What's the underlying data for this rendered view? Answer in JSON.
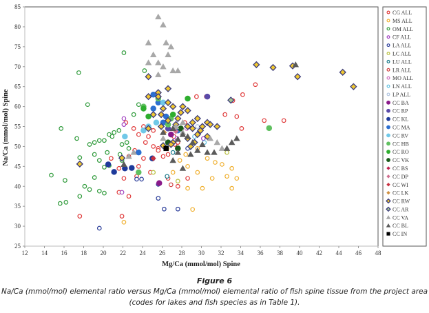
{
  "figure": {
    "title": "Figure 6",
    "caption_line1": "Na/Ca (mmol/mol) elemental ratio versus Mg/Ca (mmol/mol) elemental ratio of fish spine tissue from the project area",
    "caption_line2": "(codes for lakes and fish species as in Table 1)."
  },
  "chart_data": {
    "type": "scatter",
    "title": "",
    "xlabel": "Mg/Ca (mmol/mol) Spine",
    "ylabel": "Na/Ca (mmol/mol) Spine",
    "xlim": [
      12,
      48
    ],
    "ylim": [
      25,
      85
    ],
    "xticks": [
      "12",
      "14",
      "16",
      "18",
      "20",
      "22",
      "24",
      "26",
      "28",
      "30",
      "32",
      "34",
      "36",
      "38",
      "40",
      "42",
      "44",
      "46",
      "48"
    ],
    "yticks": [
      "25",
      "30",
      "35",
      "40",
      "45",
      "50",
      "55",
      "60",
      "65",
      "70",
      "75",
      "80",
      "85"
    ],
    "grid": false,
    "legend_position": "right",
    "series": [
      {
        "name": "CG ALL",
        "marker": "open-circle",
        "color": "#e03c3c",
        "points": [
          [
            22.3,
            56
          ],
          [
            23.1,
            54.5
          ],
          [
            23.6,
            53
          ],
          [
            24.1,
            55
          ],
          [
            24.6,
            52.5
          ],
          [
            25.1,
            50
          ],
          [
            25.6,
            49.5
          ],
          [
            26.1,
            47.5
          ],
          [
            24.3,
            51
          ],
          [
            23.2,
            49
          ],
          [
            22.6,
            47.5
          ],
          [
            21.6,
            44.5
          ],
          [
            20.8,
            47
          ],
          [
            22.1,
            42
          ],
          [
            23.6,
            45
          ],
          [
            24.8,
            43.5
          ],
          [
            25.6,
            49
          ],
          [
            26.6,
            48
          ],
          [
            27.2,
            52.5
          ],
          [
            27.6,
            51
          ],
          [
            28.3,
            56
          ],
          [
            29.5,
            62.5
          ],
          [
            30.5,
            62.5
          ],
          [
            33.2,
            61.5
          ],
          [
            34.2,
            63
          ],
          [
            32.4,
            58
          ],
          [
            33.6,
            57.5
          ],
          [
            34.1,
            54.5
          ],
          [
            36.4,
            56.5
          ],
          [
            38.4,
            56.5
          ],
          [
            35.5,
            65.5
          ],
          [
            26.6,
            42
          ],
          [
            27.6,
            40
          ],
          [
            28.6,
            42
          ],
          [
            24.1,
            47
          ],
          [
            22.6,
            37.5
          ],
          [
            21.6,
            38.5
          ],
          [
            17.6,
            32.5
          ],
          [
            21.9,
            32.5
          ],
          [
            25.1,
            54
          ],
          [
            27.3,
            50.5
          ],
          [
            23.4,
            42.5
          ]
        ]
      },
      {
        "name": "MS ALL",
        "marker": "open-circle",
        "color": "#f0b030",
        "points": [
          [
            28.4,
            48
          ],
          [
            29.6,
            49.5
          ],
          [
            30.6,
            47
          ],
          [
            31.4,
            46
          ],
          [
            32.1,
            45.5
          ],
          [
            33.1,
            44.5
          ],
          [
            33.6,
            42
          ],
          [
            32.6,
            42.5
          ],
          [
            31.1,
            42
          ],
          [
            29.6,
            43.5
          ],
          [
            28.6,
            45
          ],
          [
            27.8,
            46.5
          ],
          [
            27.1,
            43.5
          ],
          [
            28.6,
            39.5
          ],
          [
            30.1,
            39.5
          ],
          [
            33.1,
            39.5
          ],
          [
            29.1,
            34.2
          ],
          [
            22.1,
            31
          ],
          [
            26.5,
            49.5
          ]
        ]
      },
      {
        "name": "OM ALL",
        "marker": "open-circle",
        "color": "#2e9a3a",
        "points": [
          [
            17.5,
            68.5
          ],
          [
            22.1,
            73.5
          ],
          [
            18.4,
            60.5
          ],
          [
            15.7,
            54.5
          ],
          [
            17.3,
            52
          ],
          [
            14.7,
            42.8
          ],
          [
            16.1,
            41.5
          ],
          [
            16.2,
            36
          ],
          [
            15.6,
            35.7
          ],
          [
            17.6,
            37.5
          ],
          [
            18.1,
            40
          ],
          [
            18.6,
            39.2
          ],
          [
            19.6,
            38.8
          ],
          [
            20.1,
            38.3
          ],
          [
            19.1,
            42.2
          ],
          [
            20.1,
            44.8
          ],
          [
            20.6,
            45.2
          ],
          [
            21.1,
            43.5
          ],
          [
            19.6,
            46.5
          ],
          [
            19.1,
            48
          ],
          [
            18.6,
            50.5
          ],
          [
            19.1,
            51
          ],
          [
            19.6,
            51.5
          ],
          [
            20.1,
            51.5
          ],
          [
            20.6,
            53
          ],
          [
            20.9,
            52.5
          ],
          [
            21.1,
            53.5
          ],
          [
            21.6,
            54
          ],
          [
            21.9,
            50.5
          ],
          [
            22.4,
            51
          ],
          [
            21.7,
            48
          ],
          [
            21.9,
            46.5
          ],
          [
            22.6,
            49.5
          ],
          [
            23.1,
            58
          ],
          [
            23.6,
            60.5
          ],
          [
            24.2,
            69
          ],
          [
            17.6,
            47.2
          ],
          [
            20.4,
            48.5
          ]
        ]
      },
      {
        "name": "CF ALL",
        "marker": "open-circle",
        "color": "#a040c0",
        "points": [
          [
            22.1,
            57
          ],
          [
            22.1,
            55.5
          ],
          [
            21.9,
            38.5
          ],
          [
            27.5,
            52
          ],
          [
            30.2,
            52
          ]
        ]
      },
      {
        "name": "LA ALL",
        "marker": "open-circle",
        "color": "#2c3e9a",
        "points": [
          [
            19.6,
            29.5
          ],
          [
            23.4,
            41.8
          ],
          [
            23.9,
            41.8
          ],
          [
            25.6,
            37
          ],
          [
            26.2,
            34.3
          ],
          [
            27.6,
            34.3
          ],
          [
            25.6,
            40.5
          ],
          [
            28.6,
            49.5
          ]
        ]
      },
      {
        "name": "LC ALL",
        "marker": "open-circle",
        "color": "#b8c040",
        "points": [
          [
            27.6,
            41.3
          ],
          [
            25.1,
            43.5
          ],
          [
            32.6,
            48.5
          ]
        ]
      },
      {
        "name": "LU ALL",
        "marker": "open-circle",
        "color": "#1a7a8a",
        "points": [
          [
            27.1,
            48.5
          ],
          [
            26.5,
            42.5
          ]
        ]
      },
      {
        "name": "LR ALL",
        "marker": "open-circle",
        "color": "#d04040",
        "points": [
          [
            26.9,
            40.4
          ]
        ]
      },
      {
        "name": "MO ALL",
        "marker": "open-circle",
        "color": "#d070c0",
        "points": [
          [
            28.5,
            54.5
          ]
        ]
      },
      {
        "name": "LN ALL",
        "marker": "open-circle",
        "color": "#60c0e0",
        "points": [
          [
            29.3,
            52.5
          ],
          [
            30.3,
            51
          ]
        ]
      },
      {
        "name": "LP ALL",
        "marker": "open-circle",
        "color": "#b0c4e0",
        "points": [
          [
            29.6,
            55
          ]
        ]
      },
      {
        "name": "CC BA",
        "marker": "filled-circle",
        "color": "#8a1a8a",
        "points": [
          [
            25.7,
            40.8
          ],
          [
            26.9,
            53
          ]
        ]
      },
      {
        "name": "CC RP",
        "marker": "filled-circle",
        "color": "#5a4aa8",
        "points": [
          [
            30.6,
            62.5
          ],
          [
            26.6,
            54.5
          ]
        ]
      },
      {
        "name": "CC KL",
        "marker": "filled-circle",
        "color": "#1e3a9a",
        "points": [
          [
            20.5,
            45.5
          ],
          [
            22.2,
            44.5
          ],
          [
            22.9,
            44.6
          ],
          [
            21.1,
            43.6
          ],
          [
            25,
            47
          ]
        ]
      },
      {
        "name": "CC MA",
        "marker": "filled-circle",
        "color": "#2c6fd0",
        "points": [
          [
            25.1,
            63
          ],
          [
            25.6,
            61
          ],
          [
            25.1,
            59.5
          ],
          [
            26.1,
            56
          ],
          [
            26.4,
            57.5
          ],
          [
            27.6,
            54
          ],
          [
            23.6,
            48.5
          ]
        ]
      },
      {
        "name": "CC RV",
        "marker": "filled-circle",
        "color": "#70c8e8",
        "points": [
          [
            26.1,
            61
          ],
          [
            24.1,
            54
          ],
          [
            25.4,
            56
          ],
          [
            24.6,
            55
          ],
          [
            22.2,
            52.5
          ]
        ]
      },
      {
        "name": "CC HB",
        "marker": "filled-circle",
        "color": "#60c060",
        "points": [
          [
            24.1,
            60
          ],
          [
            26.6,
            55.5
          ],
          [
            26.9,
            57
          ],
          [
            36.9,
            54.6
          ],
          [
            23.6,
            43.5
          ],
          [
            25.6,
            62
          ]
        ]
      },
      {
        "name": "CC RO",
        "marker": "filled-circle",
        "color": "#2eae2e",
        "points": [
          [
            24.1,
            59.5
          ],
          [
            28.6,
            62
          ],
          [
            27.1,
            58
          ],
          [
            24.6,
            57.5
          ]
        ]
      },
      {
        "name": "CC VK",
        "marker": "filled-circle",
        "color": "#1a5a1a",
        "points": [
          [
            27.6,
            49.5
          ],
          [
            26.6,
            51
          ],
          [
            27.9,
            54.5
          ]
        ]
      },
      {
        "name": "CC BS",
        "marker": "filled-diamond",
        "color": "#c02050",
        "points": [
          [
            28.1,
            59.8
          ]
        ]
      },
      {
        "name": "CC DP",
        "marker": "filled-diamond",
        "color": "#d07090",
        "points": [
          [
            27.4,
            53.8
          ]
        ]
      },
      {
        "name": "CC WI",
        "marker": "filled-diamond",
        "color": "#c83040",
        "points": [
          [
            25.1,
            47
          ]
        ]
      },
      {
        "name": "CC LK",
        "marker": "filled-diamond",
        "color": "#d09040",
        "points": [
          [
            26.2,
            53.5
          ]
        ]
      },
      {
        "name": "CC RW",
        "marker": "outlined-diamond",
        "color": "#f0c830",
        "points": [
          [
            24.6,
            67.5
          ],
          [
            25.6,
            63.5
          ],
          [
            25.6,
            62.5
          ],
          [
            26.6,
            61
          ],
          [
            26.6,
            64.5
          ],
          [
            24.6,
            62.5
          ],
          [
            25.1,
            58
          ],
          [
            25.9,
            58
          ],
          [
            26.1,
            59.5
          ],
          [
            27.1,
            60
          ],
          [
            28.1,
            60
          ],
          [
            28.6,
            59
          ],
          [
            27.9,
            58.5
          ],
          [
            27.6,
            57
          ],
          [
            26.6,
            56.5
          ],
          [
            25.9,
            55
          ],
          [
            27.4,
            55.5
          ],
          [
            28.6,
            55
          ],
          [
            29.1,
            56
          ],
          [
            29.6,
            57
          ],
          [
            29.1,
            54.5
          ],
          [
            29.9,
            54
          ],
          [
            30.1,
            55
          ],
          [
            30.6,
            56
          ],
          [
            30.9,
            55.5
          ],
          [
            31.6,
            55
          ],
          [
            29.6,
            53
          ],
          [
            30.6,
            52.5
          ],
          [
            28.6,
            52
          ],
          [
            27.1,
            51
          ],
          [
            26.9,
            50.5
          ],
          [
            28.9,
            50
          ],
          [
            29.3,
            51
          ],
          [
            26.1,
            50.2
          ],
          [
            17.6,
            45.6
          ],
          [
            21.9,
            47.1
          ],
          [
            24.6,
            54.5
          ],
          [
            35.6,
            70.5
          ],
          [
            37.3,
            69.8
          ],
          [
            39.3,
            70.2
          ],
          [
            39.8,
            67.5
          ],
          [
            44.4,
            68.6
          ],
          [
            45.5,
            65
          ]
        ]
      },
      {
        "name": "CC AR",
        "marker": "outlined-diamond",
        "color": "#a8c890",
        "points": [
          [
            33,
            61.6
          ]
        ]
      },
      {
        "name": "CC VA",
        "marker": "triangle",
        "color": "#a8a8a8",
        "points": [
          [
            25.6,
            82.5
          ],
          [
            26.1,
            80.5
          ],
          [
            24.6,
            76
          ],
          [
            26.4,
            76
          ],
          [
            26.9,
            75
          ],
          [
            25.1,
            73
          ],
          [
            26.6,
            73
          ],
          [
            24.6,
            71
          ],
          [
            25.6,
            71
          ],
          [
            26.1,
            70
          ],
          [
            27.1,
            69
          ],
          [
            27.6,
            69
          ],
          [
            25.6,
            68
          ],
          [
            23.1,
            48.5
          ],
          [
            22.6,
            47.5
          ],
          [
            26.1,
            52
          ],
          [
            27.4,
            55
          ],
          [
            28.1,
            56
          ],
          [
            30.9,
            52
          ],
          [
            31.6,
            51
          ],
          [
            32.1,
            49.5
          ],
          [
            28.1,
            53.5
          ]
        ]
      },
      {
        "name": "CC BL",
        "marker": "triangle",
        "color": "#5a5a5a",
        "points": [
          [
            39.6,
            70.5
          ],
          [
            33.6,
            52
          ],
          [
            33.1,
            51
          ],
          [
            27.1,
            54.5
          ],
          [
            28.1,
            53
          ],
          [
            28.6,
            52.5
          ],
          [
            29.1,
            51
          ],
          [
            27.6,
            48.5
          ],
          [
            28.9,
            48
          ],
          [
            29.6,
            49
          ],
          [
            30.6,
            48.5
          ],
          [
            31.3,
            48.5
          ],
          [
            32.6,
            49.5
          ],
          [
            27.1,
            46.5
          ],
          [
            28.1,
            44.5
          ],
          [
            22.1,
            45.5
          ],
          [
            26.1,
            53.5
          ],
          [
            27.6,
            51.8
          ],
          [
            30.1,
            50.5
          ]
        ]
      },
      {
        "name": "CC IN",
        "marker": "filled-square",
        "color": "#000000",
        "points": [
          [
            26.4,
            49.5
          ]
        ]
      }
    ]
  }
}
